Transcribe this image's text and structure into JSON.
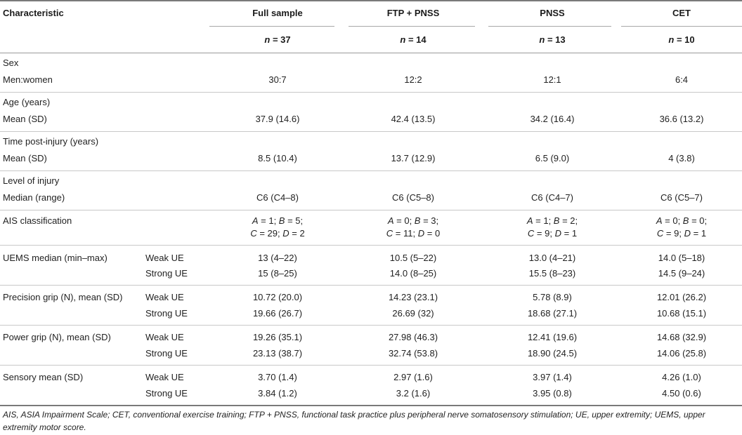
{
  "header": {
    "characteristic": "Characteristic",
    "columns": [
      "Full sample",
      "FTP + PNSS",
      "PNSS",
      "CET"
    ],
    "n_prefix": "n",
    "n_values": [
      "= 37",
      "= 14",
      "= 13",
      "= 10"
    ]
  },
  "sections": {
    "sex": {
      "title": "Sex",
      "label": "Men:women",
      "values": [
        "30:7",
        "12:2",
        "12:1",
        "6:4"
      ]
    },
    "age": {
      "title": "Age (years)",
      "label": "Mean (SD)",
      "values": [
        "37.9 (14.6)",
        "42.4 (13.5)",
        "34.2 (16.4)",
        "36.6 (13.2)"
      ]
    },
    "time": {
      "title": "Time post-injury (years)",
      "label": "Mean (SD)",
      "values": [
        "8.5 (10.4)",
        "13.7 (12.9)",
        "6.5 (9.0)",
        "4 (3.8)"
      ]
    },
    "level": {
      "title": "Level of injury",
      "label": "Median (range)",
      "values": [
        "C6 (C4–8)",
        "C6 (C5–8)",
        "C6 (C4–7)",
        "C6 (C5–7)"
      ]
    },
    "ais": {
      "title": "AIS classification",
      "line1": [
        {
          "A": "1",
          "B": "5"
        },
        {
          "A": "0",
          "B": "3"
        },
        {
          "A": "1",
          "B": "2"
        },
        {
          "A": "0",
          "B": "0"
        }
      ],
      "line2": [
        {
          "C": "29",
          "D": "2"
        },
        {
          "C": "11",
          "D": "0"
        },
        {
          "C": "9",
          "D": "1"
        },
        {
          "C": "9",
          "D": "1"
        }
      ]
    },
    "uems": {
      "title": "UEMS median (min–max)",
      "rows": [
        {
          "label": "Weak UE",
          "values": [
            "13 (4–22)",
            "10.5 (5–22)",
            "13.0 (4–21)",
            "14.0 (5–18)"
          ]
        },
        {
          "label": "Strong UE",
          "values": [
            "15 (8–25)",
            "14.0 (8–25)",
            "15.5 (8–23)",
            "14.5 (9–24)"
          ]
        }
      ]
    },
    "precision": {
      "title": "Precision grip (N), mean (SD)",
      "rows": [
        {
          "label": "Weak UE",
          "values": [
            "10.72 (20.0)",
            "14.23 (23.1)",
            "5.78 (8.9)",
            "12.01 (26.2)"
          ]
        },
        {
          "label": "Strong UE",
          "values": [
            "19.66 (26.7)",
            "26.69 (32)",
            "18.68 (27.1)",
            "10.68 (15.1)"
          ]
        }
      ]
    },
    "power": {
      "title": "Power grip (N), mean (SD)",
      "rows": [
        {
          "label": "Weak UE",
          "values": [
            "19.26 (35.1)",
            "27.98 (46.3)",
            "12.41 (19.6)",
            "14.68 (32.9)"
          ]
        },
        {
          "label": "Strong UE",
          "values": [
            "23.13 (38.7)",
            "32.74 (53.8)",
            "18.90 (24.5)",
            "14.06 (25.8)"
          ]
        }
      ]
    },
    "sensory": {
      "title": "Sensory mean (SD)",
      "rows": [
        {
          "label": "Weak UE",
          "values": [
            "3.70 (1.4)",
            "2.97 (1.6)",
            "3.97 (1.4)",
            "4.26 (1.0)"
          ]
        },
        {
          "label": "Strong UE",
          "values": [
            "3.84 (1.2)",
            "3.2 (1.6)",
            "3.95 (0.8)",
            "4.50 (0.6)"
          ]
        }
      ]
    }
  },
  "footnote": "AIS, ASIA Impairment Scale; CET, conventional exercise training; FTP + PNSS, functional task practice plus peripheral nerve somatosensory stimulation; UE, upper extremity; UEMS, upper extremity motor score."
}
